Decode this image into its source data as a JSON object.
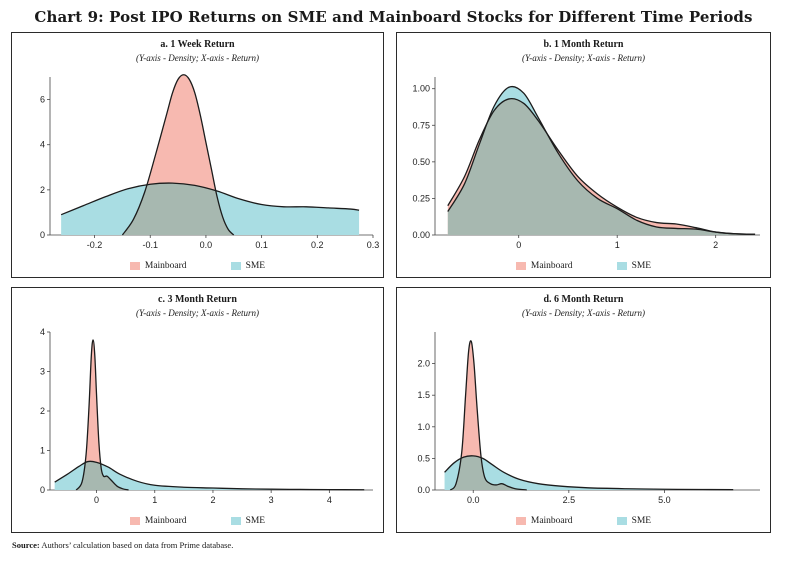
{
  "title": "Chart 9: Post IPO Returns on SME and Mainboard Stocks for Different Time Periods",
  "source_label": "Source:",
  "source_text": "Authors’ calculation based on data from Prime database.",
  "colors": {
    "mainboard": "#f7b9b0",
    "sme": "#a9dde3",
    "overlap": "#a7b8b0",
    "line": "#1c1c1c"
  },
  "chart_data": [
    {
      "type": "area",
      "title": "a. 1 Week Return",
      "subtitle": "(Y-axis - Density; X-axis - Return)",
      "xlim": [
        -0.28,
        0.3
      ],
      "ylim": [
        0,
        7
      ],
      "xticks": [
        -0.2,
        -0.1,
        0.0,
        0.1,
        0.2,
        0.3
      ],
      "xtick_labels": [
        "-0.2",
        "-0.1",
        "0.0",
        "0.1",
        "0.2",
        "0.3"
      ],
      "yticks": [
        0,
        2,
        4,
        6
      ],
      "ytick_labels": [
        "0",
        "2",
        "4",
        "6"
      ],
      "series": [
        {
          "name": "Mainboard",
          "x": [
            -0.15,
            -0.13,
            -0.11,
            -0.09,
            -0.07,
            -0.06,
            -0.05,
            -0.04,
            -0.03,
            -0.02,
            -0.01,
            0.0,
            0.01,
            0.02,
            0.03,
            0.04,
            0.05
          ],
          "y": [
            0.0,
            0.7,
            1.9,
            3.6,
            5.4,
            6.3,
            6.9,
            7.1,
            6.9,
            6.3,
            5.3,
            4.1,
            2.9,
            1.7,
            0.8,
            0.25,
            0.0
          ]
        },
        {
          "name": "SME",
          "x": [
            -0.26,
            -0.22,
            -0.18,
            -0.14,
            -0.1,
            -0.06,
            -0.02,
            0.02,
            0.06,
            0.1,
            0.14,
            0.18,
            0.22,
            0.26,
            0.275
          ],
          "y": [
            0.9,
            1.3,
            1.7,
            2.05,
            2.25,
            2.3,
            2.2,
            1.95,
            1.6,
            1.35,
            1.25,
            1.25,
            1.2,
            1.15,
            1.1
          ]
        }
      ]
    },
    {
      "type": "area",
      "title": "b. 1 Month Return",
      "subtitle": "(Y-axis - Density; X-axis - Return)",
      "xlim": [
        -0.85,
        2.45
      ],
      "ylim": [
        0,
        1.08
      ],
      "xticks": [
        0,
        1,
        2
      ],
      "xtick_labels": [
        "0",
        "1",
        "2"
      ],
      "yticks": [
        0,
        0.25,
        0.5,
        0.75,
        1.0
      ],
      "ytick_labels": [
        "0.00",
        "0.25",
        "0.50",
        "0.75",
        "1.00"
      ],
      "series": [
        {
          "name": "Mainboard",
          "x": [
            -0.72,
            -0.55,
            -0.4,
            -0.25,
            -0.1,
            0.05,
            0.2,
            0.4,
            0.6,
            0.8,
            1.0,
            1.2,
            1.4,
            1.6,
            1.8,
            2.0,
            2.2,
            2.4
          ],
          "y": [
            0.2,
            0.4,
            0.65,
            0.85,
            0.93,
            0.9,
            0.78,
            0.58,
            0.4,
            0.28,
            0.19,
            0.12,
            0.085,
            0.075,
            0.05,
            0.02,
            0.008,
            0.005
          ]
        },
        {
          "name": "SME",
          "x": [
            -0.72,
            -0.55,
            -0.4,
            -0.25,
            -0.1,
            0.05,
            0.2,
            0.4,
            0.6,
            0.8,
            1.0,
            1.2,
            1.4,
            1.6,
            1.8,
            2.0,
            2.2,
            2.4
          ],
          "y": [
            0.16,
            0.35,
            0.62,
            0.88,
            1.01,
            0.97,
            0.8,
            0.56,
            0.37,
            0.25,
            0.18,
            0.1,
            0.055,
            0.045,
            0.04,
            0.02,
            0.008,
            0.005
          ]
        }
      ]
    },
    {
      "type": "area",
      "title": "c. 3 Month Return",
      "subtitle": "(Y-axis - Density; X-axis - Return)",
      "xlim": [
        -0.8,
        4.75
      ],
      "ylim": [
        0,
        4
      ],
      "xticks": [
        0,
        1,
        2,
        3,
        4
      ],
      "xtick_labels": [
        "0",
        "1",
        "2",
        "3",
        "4"
      ],
      "yticks": [
        0,
        1,
        2,
        3,
        4
      ],
      "ytick_labels": [
        "0",
        "1",
        "2",
        "3",
        "4"
      ],
      "series": [
        {
          "name": "Mainboard",
          "x": [
            -0.35,
            -0.25,
            -0.18,
            -0.13,
            -0.09,
            -0.06,
            -0.03,
            0.0,
            0.04,
            0.08,
            0.12,
            0.18,
            0.25,
            0.35,
            0.45,
            0.55
          ],
          "y": [
            0.0,
            0.2,
            0.9,
            2.1,
            3.4,
            3.8,
            3.4,
            2.4,
            1.2,
            0.55,
            0.35,
            0.35,
            0.25,
            0.1,
            0.03,
            0.0
          ]
        },
        {
          "name": "SME",
          "x": [
            -0.72,
            -0.5,
            -0.3,
            -0.15,
            0.0,
            0.2,
            0.4,
            0.7,
            1.0,
            1.5,
            2.0,
            2.5,
            3.0,
            3.5,
            4.0,
            4.6
          ],
          "y": [
            0.2,
            0.4,
            0.6,
            0.72,
            0.7,
            0.58,
            0.4,
            0.22,
            0.12,
            0.07,
            0.05,
            0.03,
            0.02,
            0.015,
            0.01,
            0.005
          ]
        }
      ]
    },
    {
      "type": "area",
      "title": "d. 6 Month Return",
      "subtitle": "(Y-axis - Density; X-axis - Return)",
      "xlim": [
        -1.0,
        7.5
      ],
      "ylim": [
        0,
        2.5
      ],
      "xticks": [
        0,
        2.5,
        5.0
      ],
      "xtick_labels": [
        "0.0",
        "2.5",
        "5.0"
      ],
      "yticks": [
        0,
        0.5,
        1.0,
        1.5,
        2.0
      ],
      "ytick_labels": [
        "0.0",
        "0.5",
        "1.0",
        "1.5",
        "2.0"
      ],
      "series": [
        {
          "name": "Mainboard",
          "x": [
            -0.6,
            -0.45,
            -0.3,
            -0.2,
            -0.12,
            -0.05,
            0.02,
            0.1,
            0.2,
            0.3,
            0.45,
            0.6,
            0.75,
            0.9,
            1.1,
            1.4
          ],
          "y": [
            0.0,
            0.1,
            0.6,
            1.5,
            2.2,
            2.35,
            2.0,
            1.3,
            0.55,
            0.2,
            0.1,
            0.08,
            0.1,
            0.06,
            0.02,
            0.0
          ]
        },
        {
          "name": "SME",
          "x": [
            -0.75,
            -0.5,
            -0.25,
            0.0,
            0.25,
            0.5,
            0.8,
            1.2,
            1.7,
            2.3,
            3.0,
            4.0,
            5.0,
            6.0,
            6.8
          ],
          "y": [
            0.28,
            0.43,
            0.52,
            0.54,
            0.5,
            0.4,
            0.28,
            0.17,
            0.1,
            0.06,
            0.035,
            0.02,
            0.012,
            0.008,
            0.005
          ]
        }
      ]
    }
  ],
  "legend": {
    "mainboard_label": "Mainboard",
    "sme_label": "SME"
  }
}
